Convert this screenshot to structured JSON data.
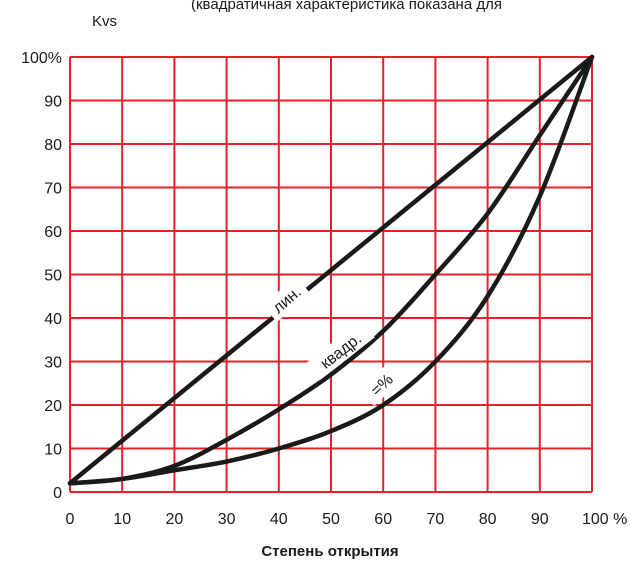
{
  "chart_data": {
    "type": "line",
    "note": "(квадратичная характеристика показана для",
    "ylabel": "Kvs",
    "xlabel": "Степень открытия",
    "x_unit": "%",
    "y_top_label": "100%",
    "xlim": [
      0,
      100
    ],
    "ylim": [
      0,
      100
    ],
    "x_ticks": [
      "0",
      "10",
      "20",
      "30",
      "40",
      "50",
      "60",
      "70",
      "80",
      "90",
      "100 %"
    ],
    "y_ticks": [
      "0",
      "10",
      "20",
      "30",
      "40",
      "50",
      "60",
      "70",
      "80",
      "90",
      "100%"
    ],
    "grid": true,
    "grid_color": "#e8202a",
    "line_color": "#1a1a1a",
    "series": [
      {
        "name": "лин.",
        "x": [
          0,
          100
        ],
        "y": [
          2,
          100
        ]
      },
      {
        "name": "квадр.",
        "x": [
          0,
          10,
          20,
          30,
          40,
          50,
          60,
          70,
          80,
          90,
          100
        ],
        "y": [
          2,
          3,
          6,
          12,
          19,
          27,
          37,
          50,
          64,
          82,
          100
        ]
      },
      {
        "name": "=%",
        "x": [
          0,
          10,
          20,
          30,
          40,
          50,
          60,
          70,
          80,
          90,
          100
        ],
        "y": [
          2,
          3,
          5,
          7,
          10,
          14,
          20,
          30,
          45,
          68,
          100
        ]
      }
    ]
  }
}
